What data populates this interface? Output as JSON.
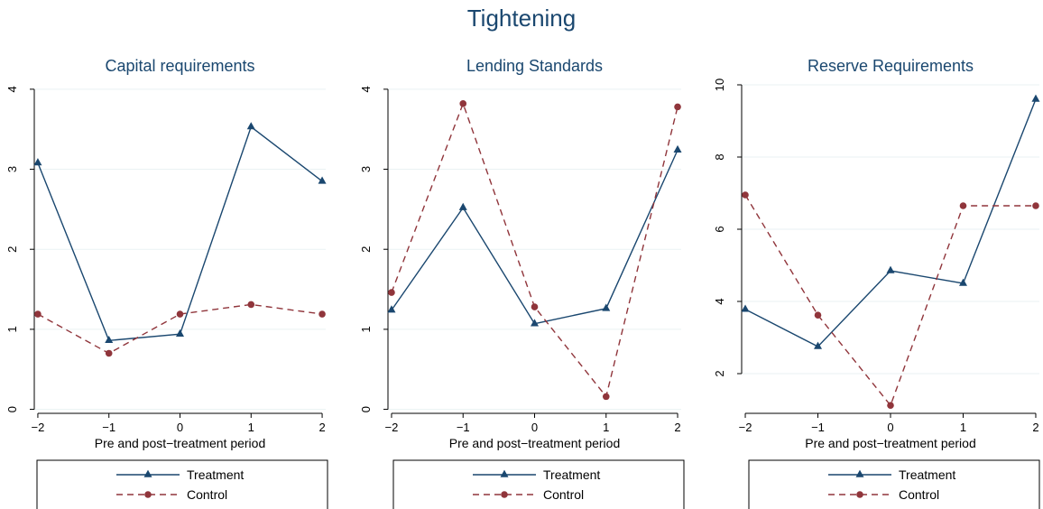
{
  "figure": {
    "title": "Tightening"
  },
  "colors": {
    "treatment": "#1a476f",
    "control": "#90353b",
    "grid": "#eaf2f3",
    "axis": "#000000",
    "title": "#1a476f"
  },
  "chart_data": [
    {
      "type": "line",
      "title": "Capital requirements",
      "xlabel": "Pre and post−treatment period",
      "ylabel": "",
      "x": [
        -2,
        -1,
        0,
        1,
        2
      ],
      "x_tick_labels": [
        "−2",
        "−1",
        "0",
        "1",
        "2"
      ],
      "xlim": [
        -2.05,
        2.05
      ],
      "y_ticks": [
        0,
        1,
        2,
        3,
        4
      ],
      "ylim": [
        -0.05,
        4.1
      ],
      "grid": true,
      "legend_position": "bottom",
      "series": [
        {
          "name": "Treatment",
          "marker": "triangle",
          "style": "solid",
          "values": [
            3.08,
            0.86,
            0.94,
            3.53,
            2.85
          ]
        },
        {
          "name": "Control",
          "marker": "circle",
          "style": "dashed",
          "values": [
            1.19,
            0.7,
            1.19,
            1.31,
            1.19
          ]
        }
      ]
    },
    {
      "type": "line",
      "title": "Lending Standards",
      "xlabel": "Pre and post−treatment period",
      "ylabel": "",
      "x": [
        -2,
        -1,
        0,
        1,
        2
      ],
      "x_tick_labels": [
        "−2",
        "−1",
        "0",
        "1",
        "2"
      ],
      "xlim": [
        -2.05,
        2.05
      ],
      "y_ticks": [
        0,
        1,
        2,
        3,
        4
      ],
      "ylim": [
        -0.05,
        4.1
      ],
      "grid": true,
      "legend_position": "bottom",
      "series": [
        {
          "name": "Treatment",
          "marker": "triangle",
          "style": "solid",
          "values": [
            1.24,
            2.52,
            1.07,
            1.26,
            3.24
          ]
        },
        {
          "name": "Control",
          "marker": "circle",
          "style": "dashed",
          "values": [
            1.46,
            3.82,
            1.28,
            0.16,
            3.78
          ]
        }
      ]
    },
    {
      "type": "line",
      "title": "Reserve Requirements",
      "xlabel": "Pre and post−treatment period",
      "ylabel": "",
      "x": [
        -2,
        -1,
        0,
        1,
        2
      ],
      "x_tick_labels": [
        "−2",
        "−1",
        "0",
        "1",
        "2"
      ],
      "xlim": [
        -2.05,
        2.05
      ],
      "y_ticks": [
        2,
        4,
        6,
        8,
        10
      ],
      "ylim": [
        0.9,
        10.1
      ],
      "grid": true,
      "legend_position": "bottom",
      "series": [
        {
          "name": "Treatment",
          "marker": "triangle",
          "style": "solid",
          "values": [
            3.78,
            2.75,
            4.85,
            4.5,
            9.6
          ]
        },
        {
          "name": "Control",
          "marker": "circle",
          "style": "dashed",
          "values": [
            6.95,
            3.62,
            1.12,
            6.65,
            6.65
          ]
        }
      ]
    }
  ]
}
